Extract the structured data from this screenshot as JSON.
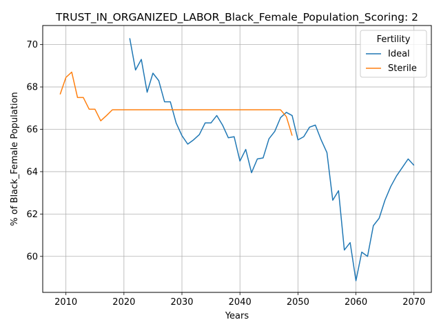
{
  "chart_data": {
    "type": "line",
    "title": "TRUST_IN_ORGANIZED_LABOR_Black_Female_Population_Scoring: 2",
    "xlabel": "Years",
    "ylabel": "% of Black_Female Population",
    "xlim": [
      2006,
      2073
    ],
    "ylim": [
      58.3,
      70.9
    ],
    "xticks": [
      2010,
      2020,
      2030,
      2040,
      2050,
      2060,
      2070
    ],
    "yticks": [
      60,
      62,
      64,
      66,
      68,
      70
    ],
    "grid": true,
    "legend": {
      "title": "Fertility",
      "placement": "top-right"
    },
    "series": [
      {
        "name": "Ideal",
        "color": "#1f77b4",
        "x": [
          2021,
          2022,
          2023,
          2024,
          2025,
          2026,
          2027,
          2028,
          2029,
          2030,
          2031,
          2032,
          2033,
          2034,
          2035,
          2036,
          2037,
          2038,
          2039,
          2040,
          2041,
          2042,
          2043,
          2044,
          2045,
          2046,
          2047,
          2048,
          2049,
          2050,
          2051,
          2052,
          2053,
          2054,
          2055,
          2056,
          2057,
          2058,
          2059,
          2060,
          2061,
          2062,
          2063,
          2064,
          2065,
          2066,
          2067,
          2068,
          2069,
          2070
        ],
        "values": [
          70.3,
          68.8,
          69.3,
          67.75,
          68.65,
          68.3,
          67.3,
          67.3,
          66.3,
          65.7,
          65.3,
          65.5,
          65.75,
          66.3,
          66.3,
          66.65,
          66.2,
          65.6,
          65.65,
          64.5,
          65.05,
          63.95,
          64.6,
          64.65,
          65.55,
          65.9,
          66.55,
          66.8,
          66.65,
          65.5,
          65.65,
          66.1,
          66.2,
          65.5,
          64.9,
          62.65,
          63.1,
          60.3,
          60.65,
          58.85,
          60.2,
          60.0,
          61.45,
          61.8,
          62.65,
          63.3,
          63.8,
          64.2,
          64.6,
          64.3
        ]
      },
      {
        "name": "Sterile",
        "color": "#ff7f0e",
        "x": [
          2009,
          2010,
          2011,
          2012,
          2013,
          2014,
          2015,
          2016,
          2017,
          2018,
          2019,
          2020,
          2021,
          2022,
          2023,
          2024,
          2025,
          2026,
          2027,
          2028,
          2029,
          2030,
          2031,
          2032,
          2033,
          2034,
          2035,
          2036,
          2037,
          2038,
          2039,
          2040,
          2041,
          2042,
          2043,
          2044,
          2045,
          2046,
          2047,
          2048,
          2049
        ],
        "values": [
          67.65,
          68.45,
          68.7,
          67.5,
          67.5,
          66.95,
          66.95,
          66.4,
          66.65,
          66.92,
          66.92,
          66.92,
          66.92,
          66.92,
          66.92,
          66.92,
          66.92,
          66.92,
          66.92,
          66.92,
          66.92,
          66.92,
          66.92,
          66.92,
          66.92,
          66.92,
          66.92,
          66.92,
          66.92,
          66.92,
          66.92,
          66.92,
          66.92,
          66.92,
          66.92,
          66.92,
          66.92,
          66.92,
          66.92,
          66.6,
          65.7
        ]
      }
    ]
  }
}
